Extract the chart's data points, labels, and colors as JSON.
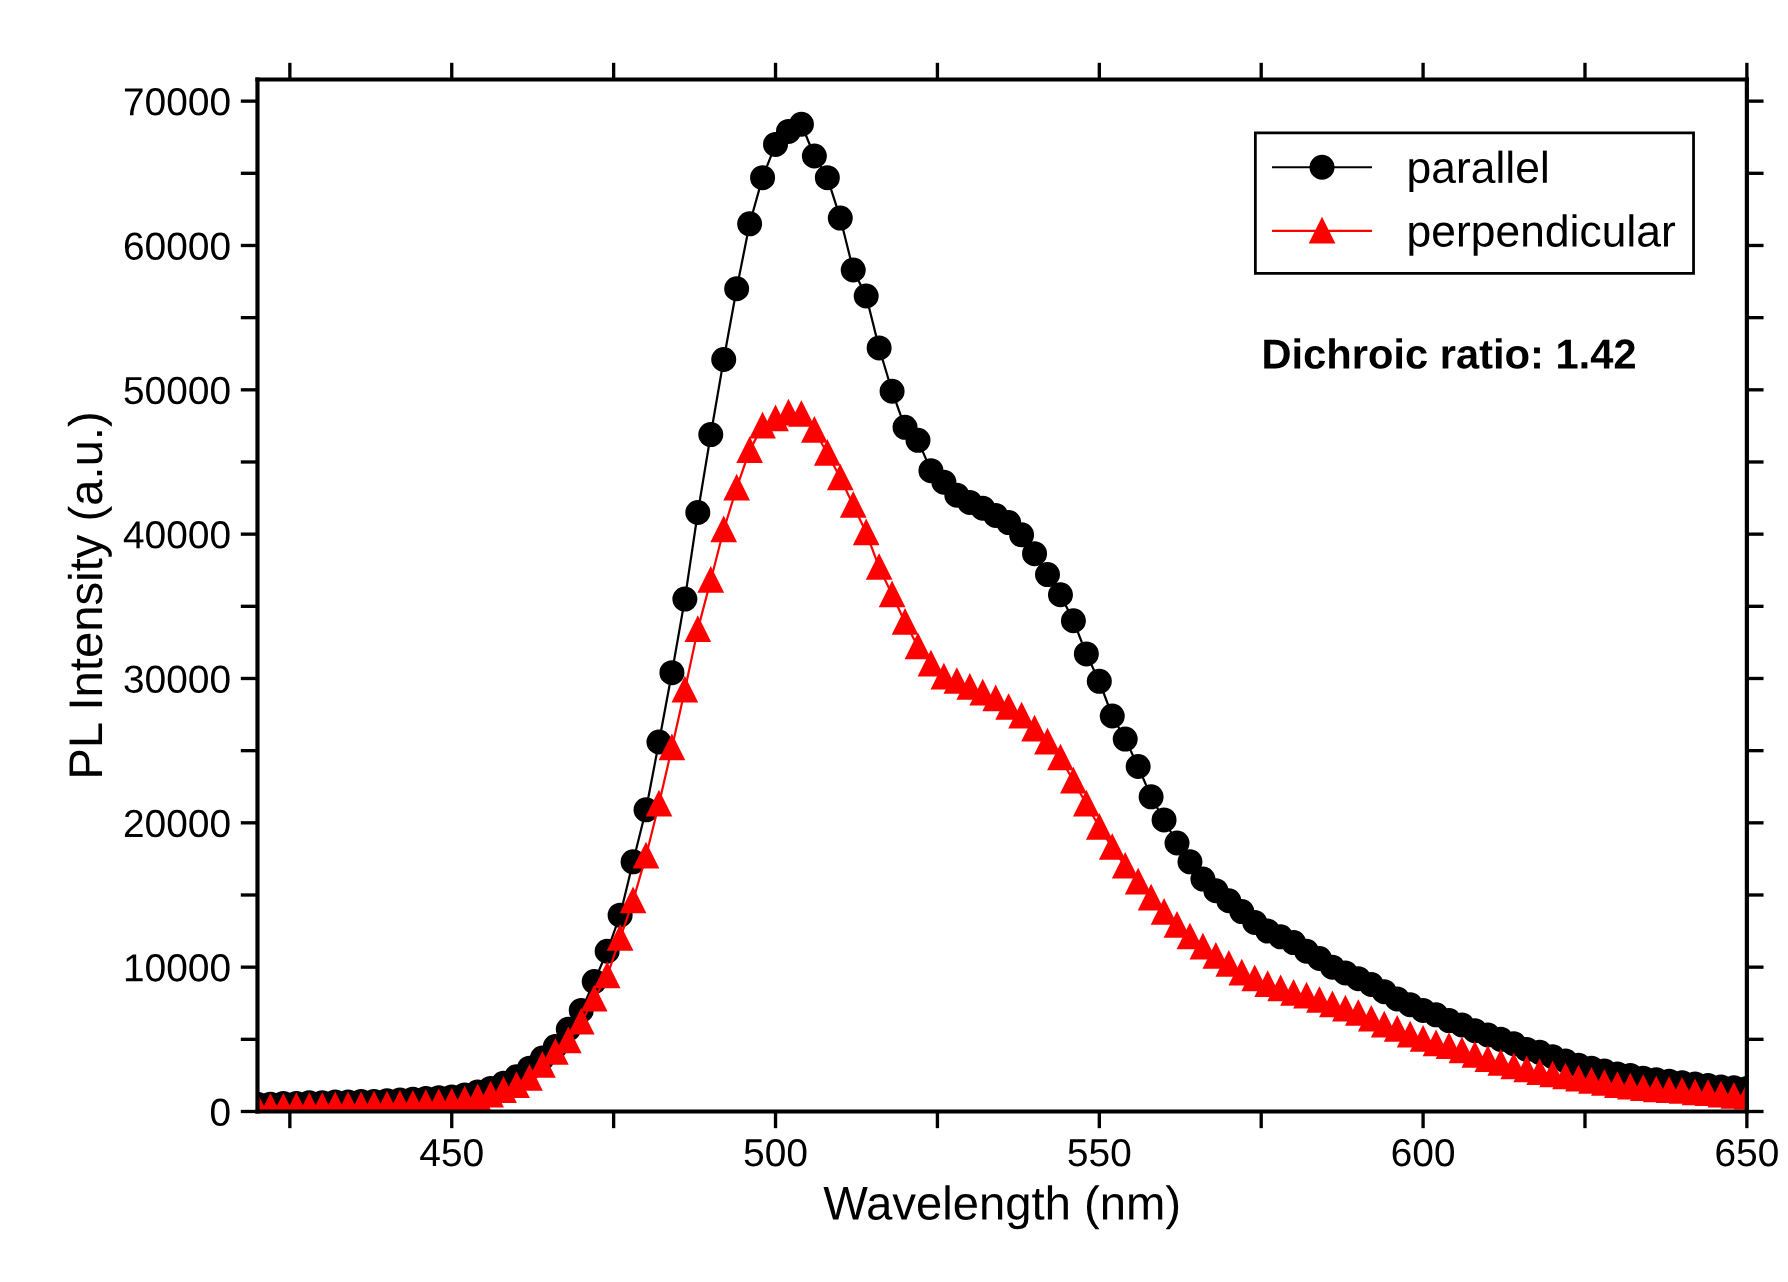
{
  "chart_data": {
    "type": "line",
    "xlabel": "Wavelength (nm)",
    "ylabel": "PL Intensity (a.u.)",
    "annotations": [
      "Dichroic ratio: 1.42"
    ],
    "x": [
      420,
      422,
      424,
      426,
      428,
      430,
      432,
      434,
      436,
      438,
      440,
      442,
      444,
      446,
      448,
      450,
      452,
      454,
      456,
      458,
      460,
      462,
      464,
      466,
      468,
      470,
      472,
      474,
      476,
      478,
      480,
      482,
      484,
      486,
      488,
      490,
      492,
      494,
      496,
      498,
      500,
      502,
      504,
      506,
      508,
      510,
      512,
      514,
      516,
      518,
      520,
      522,
      524,
      526,
      528,
      530,
      532,
      534,
      536,
      538,
      540,
      542,
      544,
      546,
      548,
      550,
      552,
      554,
      556,
      558,
      560,
      562,
      564,
      566,
      568,
      570,
      572,
      574,
      576,
      578,
      580,
      582,
      584,
      586,
      588,
      590,
      592,
      594,
      596,
      598,
      600,
      602,
      604,
      606,
      608,
      610,
      612,
      614,
      616,
      618,
      620,
      622,
      624,
      626,
      628,
      630,
      632,
      634,
      636,
      638,
      640,
      642,
      644,
      646,
      648,
      650
    ],
    "series": [
      {
        "name": "parallel",
        "color": "#000000",
        "marker": "circle",
        "values": [
          500,
          500,
          550,
          550,
          600,
          600,
          650,
          650,
          700,
          700,
          750,
          800,
          850,
          900,
          950,
          1000,
          1150,
          1350,
          1600,
          1950,
          2400,
          3000,
          3700,
          4500,
          5700,
          7000,
          9000,
          11100,
          13600,
          17300,
          20900,
          25600,
          30400,
          35500,
          41500,
          46900,
          52100,
          57000,
          61500,
          64700,
          67000,
          67900,
          68400,
          66200,
          64700,
          61900,
          58300,
          56500,
          52900,
          49900,
          47400,
          46500,
          44400,
          43600,
          42700,
          42200,
          41800,
          41300,
          40800,
          39950,
          38650,
          37200,
          35800,
          34000,
          31700,
          29800,
          27400,
          25800,
          23900,
          21800,
          20200,
          18600,
          17300,
          16100,
          15300,
          14600,
          13850,
          13100,
          12500,
          12100,
          11700,
          11100,
          10600,
          10000,
          9600,
          9200,
          8800,
          8300,
          7800,
          7400,
          7000,
          6700,
          6300,
          6000,
          5600,
          5300,
          5000,
          4700,
          4300,
          4100,
          3800,
          3500,
          3200,
          3000,
          2800,
          2600,
          2500,
          2300,
          2200,
          2100,
          2000,
          1900,
          1800,
          1700,
          1650,
          1600
        ]
      },
      {
        "name": "perpendicular",
        "color": "#ff0000",
        "marker": "triangle",
        "values": [
          300,
          300,
          300,
          350,
          350,
          350,
          400,
          400,
          400,
          450,
          450,
          500,
          500,
          550,
          600,
          650,
          800,
          950,
          1150,
          1450,
          1800,
          2300,
          3200,
          4100,
          4900,
          6200,
          7800,
          9400,
          12000,
          14600,
          17700,
          21300,
          25200,
          29200,
          33400,
          36800,
          40300,
          43200,
          45800,
          47500,
          48000,
          48400,
          48300,
          47200,
          45600,
          43900,
          42000,
          40100,
          37700,
          35800,
          33900,
          32200,
          31000,
          30100,
          29800,
          29400,
          29000,
          28600,
          28000,
          27400,
          26500,
          25600,
          24500,
          22900,
          21300,
          19700,
          18300,
          17000,
          15900,
          14800,
          13800,
          12900,
          12100,
          11400,
          10750,
          10200,
          9600,
          9200,
          8800,
          8500,
          8200,
          8000,
          7700,
          7400,
          7100,
          6800,
          6400,
          6000,
          5700,
          5300,
          5000,
          4700,
          4500,
          4200,
          3900,
          3600,
          3350,
          3100,
          2900,
          2700,
          2550,
          2400,
          2250,
          2100,
          1950,
          1800,
          1700,
          1600,
          1500,
          1450,
          1400,
          1300,
          1250,
          1150,
          1050,
          1000
        ]
      }
    ],
    "xlim": [
      420,
      650
    ],
    "xticks": [
      {
        "value": 425,
        "label": null
      },
      450,
      {
        "value": 475,
        "label": null
      },
      500,
      {
        "value": 525,
        "label": null
      },
      550,
      {
        "value": 575,
        "label": null
      },
      600,
      {
        "value": 625,
        "label": null
      },
      650
    ],
    "ylim": [
      0,
      71500
    ],
    "yticks": [
      0,
      {
        "value": 5000,
        "label": null
      },
      10000,
      {
        "value": 15000,
        "label": null
      },
      20000,
      {
        "value": 25000,
        "label": null
      },
      30000,
      {
        "value": 35000,
        "label": null
      },
      40000,
      {
        "value": 45000,
        "label": null
      },
      50000,
      {
        "value": 55000,
        "label": null
      },
      60000,
      {
        "value": 65000,
        "label": null
      },
      70000
    ],
    "legend": "top right",
    "grid": false,
    "line_style": "solid"
  }
}
